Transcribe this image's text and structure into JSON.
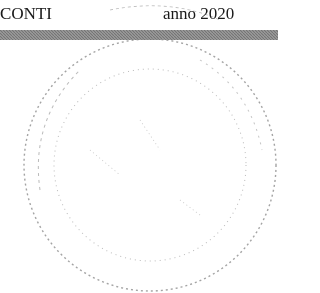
{
  "header": {
    "left": "CONTI",
    "right": "anno 2020"
  }
}
